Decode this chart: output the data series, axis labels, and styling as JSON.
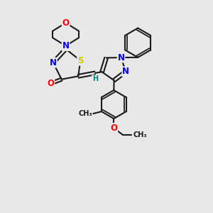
{
  "bg_color": "#e8e8e8",
  "bond_color": "#1a1a1a",
  "bond_width": 1.5,
  "atom_colors": {
    "N": "#0000ff",
    "O": "#ff0000",
    "S": "#cccc00",
    "H": "#008888",
    "C": "#1a1a1a"
  },
  "font_size": 8.5,
  "fig_size": [
    3.0,
    3.0
  ],
  "dpi": 100
}
